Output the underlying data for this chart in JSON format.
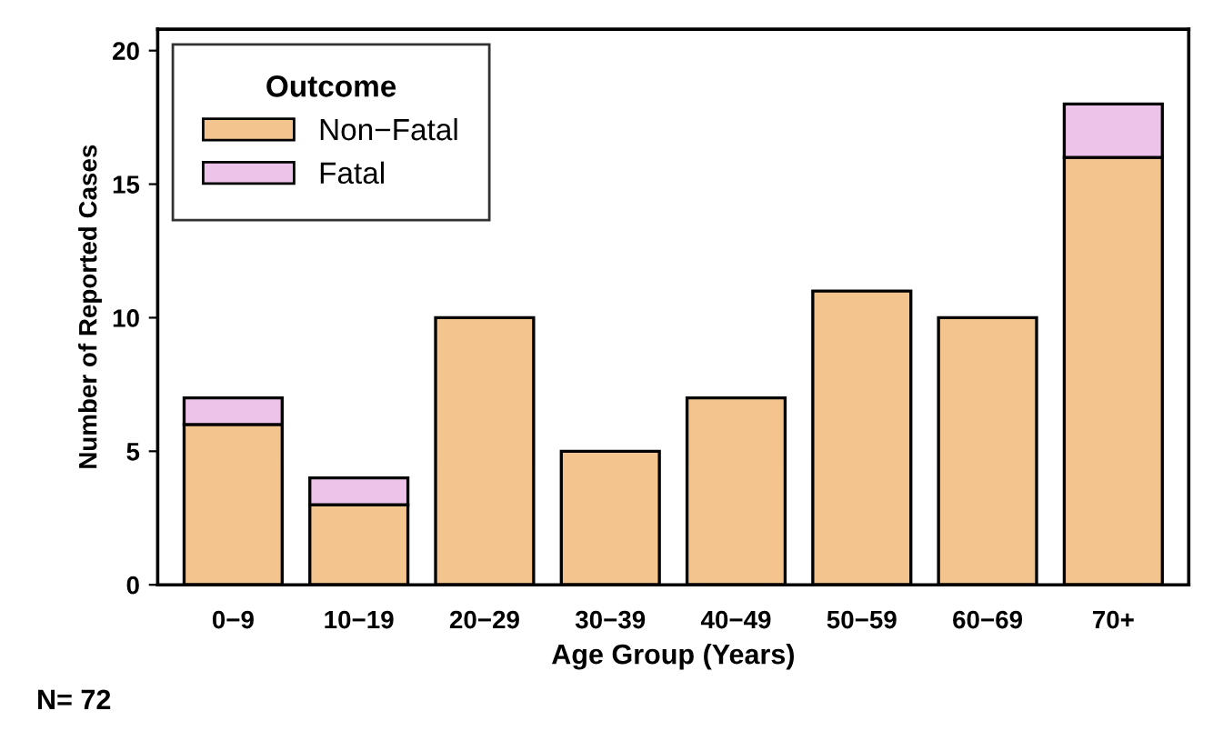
{
  "chart_data": {
    "type": "bar",
    "stacked": true,
    "xlabel": "Age Group (Years)",
    "ylabel": "Number of Reported Cases",
    "legend_title": "Outcome",
    "categories": [
      "0−9",
      "10−19",
      "20−29",
      "30−39",
      "40−49",
      "50−59",
      "60−69",
      "70+"
    ],
    "series": [
      {
        "name": "Non−Fatal",
        "color": "#f4c48e",
        "values": [
          6,
          3,
          10,
          5,
          7,
          11,
          10,
          16
        ]
      },
      {
        "name": "Fatal",
        "color": "#eec3ea",
        "values": [
          1,
          1,
          null,
          null,
          null,
          null,
          null,
          2
        ]
      }
    ],
    "ylim": [
      0,
      20.8
    ],
    "yticks": [
      0,
      5,
      10,
      15,
      20
    ],
    "grid": false,
    "legend": "top left",
    "annotations": [
      "N= 72"
    ]
  }
}
